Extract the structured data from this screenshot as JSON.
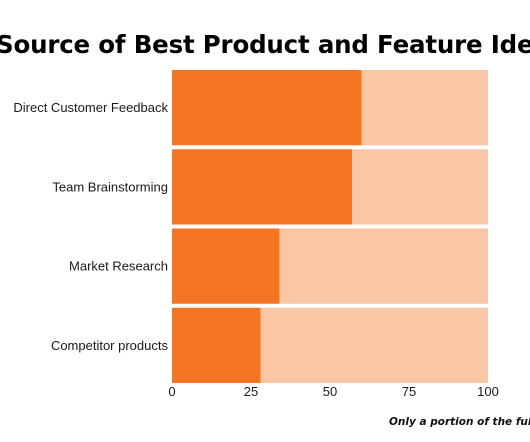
{
  "chart_data": {
    "type": "bar",
    "orientation": "horizontal",
    "stacked": true,
    "title": "Source of Best Product and Feature Ideas",
    "categories": [
      "Direct Customer Feedback",
      "Team Brainstorming",
      "Market Research",
      "Competitor products"
    ],
    "series": [
      {
        "values": [
          60,
          57,
          34,
          28
        ],
        "color": "#f47524"
      },
      {
        "values": [
          40,
          43,
          66,
          72
        ],
        "color": "#f9c6a6"
      }
    ],
    "xlim": [
      0,
      100
    ],
    "xticks": [
      0,
      25,
      50,
      75,
      100
    ],
    "grid": false,
    "legend": "none"
  },
  "footnote": "Only a portion of the full"
}
